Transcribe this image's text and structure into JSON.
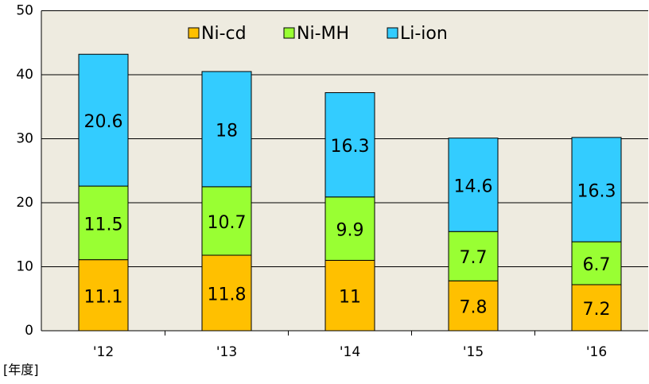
{
  "chart_data": {
    "type": "stacked_bar",
    "x_label": "[年度]",
    "categories": [
      "'12",
      "'13",
      "'14",
      "'15",
      "'16"
    ],
    "series": [
      {
        "name": "Ni-cd",
        "color": "#ffc000",
        "values": [
          11.1,
          11.8,
          11,
          7.8,
          7.2
        ]
      },
      {
        "name": "Ni-MH",
        "color": "#99ff33",
        "values": [
          11.5,
          10.7,
          9.9,
          7.7,
          6.7
        ]
      },
      {
        "name": "Li-ion",
        "color": "#33ccff",
        "values": [
          20.6,
          18,
          16.3,
          14.6,
          16.3
        ]
      }
    ],
    "ylim": [
      0,
      50
    ],
    "yticks": [
      0,
      10,
      20,
      30,
      40,
      50
    ],
    "grid": true,
    "legend": "top"
  }
}
